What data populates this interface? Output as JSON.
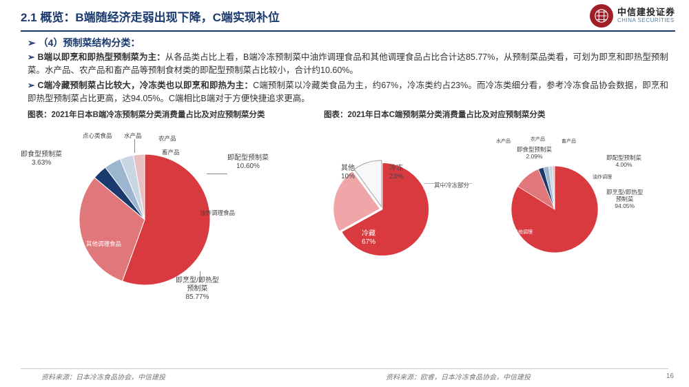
{
  "header": {
    "title": "2.1 概览：B端随经济走弱出现下降，C端实现补位"
  },
  "logo": {
    "cn": "中信建投证券",
    "en": "CHINA SECURITIES"
  },
  "subheading": "➢ （4）预制菜结构分类：",
  "bullets": [
    {
      "lead": "B端以即烹和即热型预制菜为主：",
      "text": "从各品类占比上看，B端冷冻预制菜中油炸调理食品和其他调理食品占比合计达85.77%，从预制菜品类看，可划为即烹和即热型预制菜。水产品、农产品和畜产品等预制食材类的即配型预制菜占比较小，合计约10.60%。"
    },
    {
      "lead": "C端冷藏预制菜占比较大，冷冻类也以即烹和即热为主：",
      "text": "C端预制菜以冷藏类食品为主，约67%，冷冻类约占23%。而冷冻类细分看，参考冷冻食品协会数据，即烹和即热型预制菜占比更高，达94.05%。C端相比B端对于方便快捷追求更高。"
    }
  ],
  "chartTitles": {
    "left": "图表：2021年日本B端冷冻预制菜分类消费量占比及对应预制菜分类",
    "right": "图表：2021年日本C端预制菜分类消费量占比及对应预制菜分类"
  },
  "pie1": {
    "labels": {
      "other_food": "其他调理食品",
      "fried": "油炸调理食品",
      "dessert": "点心类食品",
      "aqua": "水产品",
      "agri": "农产品",
      "meat": "畜产品",
      "ready_eat": "即食型预制菜",
      "ready_eat_pct": "3.63%",
      "ready_mix": "即配型预制菜",
      "ready_mix_pct": "10.60%",
      "ready_cook": "即烹型/即热型",
      "ready_cook2": "预制菜",
      "ready_cook_pct": "85.77%"
    },
    "colors": {
      "other_food": "#d83a3f",
      "fried": "#e0777a",
      "dessert": "#1a3a6e",
      "aqua": "#9db6cf",
      "agri": "#c9d6e3",
      "meat": "#e8c0c2"
    },
    "angles": {
      "other_food_end": 200,
      "fried_end": 310,
      "dessert_end": 323,
      "aqua_end": 338,
      "agri_end": 350,
      "meat_end": 360
    }
  },
  "pie2": {
    "labels": {
      "cold": "冷藏",
      "cold_pct": "67%",
      "frozen": "冷冻",
      "frozen_pct": "23%",
      "other": "其他",
      "other_pct": "10%",
      "note": "其中冷冻部分"
    },
    "colors": {
      "cold": "#d83a3f",
      "frozen": "#f0a6a8",
      "other": "#f8f8f8",
      "other_border": "#aaa"
    },
    "angles": {
      "cold_end": 241,
      "frozen_end": 324
    }
  },
  "pie3": {
    "labels": {
      "ready_eat": "即食型预制菜",
      "ready_eat_pct": "2.09%",
      "ready_mix": "即配型预制菜",
      "ready_mix_pct": "4.00%",
      "ready_cook": "即烹型/即热型",
      "ready_cook2": "预制菜",
      "ready_cook_pct": "94.05%",
      "aqua": "水产品",
      "agri": "农产品",
      "meat": "畜产品",
      "fried": "油炸调理",
      "other": "其他调理"
    },
    "colors": {
      "main": "#d83a3f",
      "fried": "#e0777a",
      "dessert": "#1a3a6e",
      "aqua": "#9db6cf",
      "agri": "#c9d6e3",
      "meat": "#e8c0c2"
    },
    "angles": {
      "main_end": 302,
      "fried_end": 338,
      "dessert_end": 345,
      "aqua_end": 352,
      "agri_end": 357,
      "meat_end": 360
    }
  },
  "sources": {
    "left": "资料来源：日本冷冻食品协会，中信建投",
    "right": "资料来源：欧睿，日本冷冻食品协会，中信建投"
  },
  "pageNum": "16"
}
